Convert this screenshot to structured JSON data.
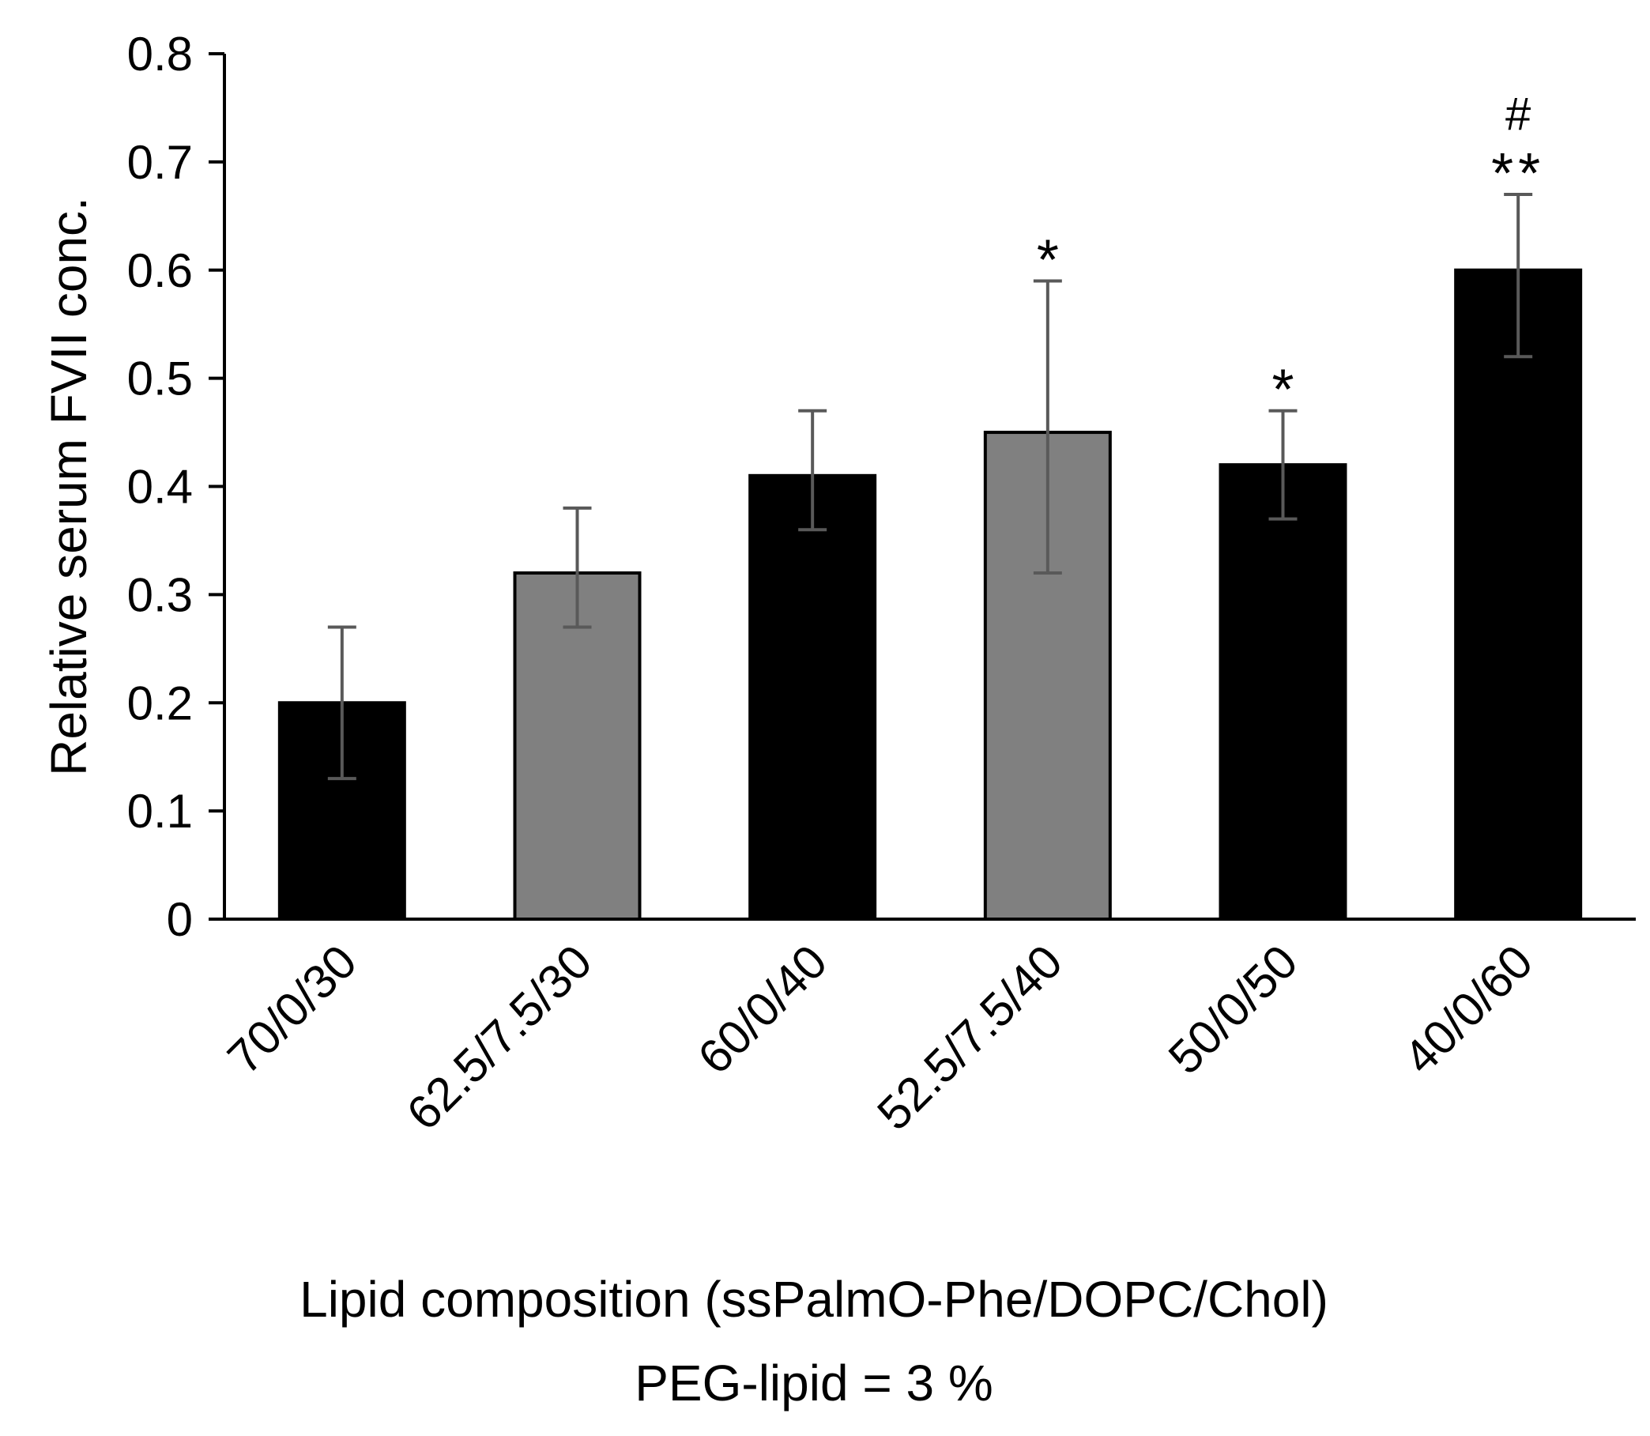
{
  "chart_data": {
    "type": "bar",
    "title": "",
    "ylabel": "Relative  serum FVII conc.",
    "xlabel_line1": "Lipid composition (ssPalmO-Phe/DOPC/Chol)",
    "xlabel_line2": "PEG-lipid = 3 %",
    "ylim": [
      0,
      0.8
    ],
    "yticks": [
      "0",
      "0.1",
      "0.2",
      "0.3",
      "0.4",
      "0.5",
      "0.6",
      "0.7",
      "0.8"
    ],
    "ytick_values": [
      0,
      0.1,
      0.2,
      0.3,
      0.4,
      0.5,
      0.6,
      0.7,
      0.8
    ],
    "grid": false,
    "categories": [
      "70/0/30",
      "62.5/7.5/30",
      "60/0/40",
      "52.5/7.5/40",
      "50/0/50",
      "40/0/60"
    ],
    "values": [
      0.2,
      0.32,
      0.41,
      0.45,
      0.42,
      0.6
    ],
    "error_low": [
      0.13,
      0.27,
      0.36,
      0.32,
      0.37,
      0.52
    ],
    "error_high": [
      0.27,
      0.38,
      0.47,
      0.59,
      0.47,
      0.67
    ],
    "bar_colors": [
      "#000000",
      "#808080",
      "#000000",
      "#808080",
      "#000000",
      "#000000"
    ],
    "significance": [
      "",
      "",
      "",
      "*",
      "*",
      "**"
    ],
    "significance_hash": [
      "",
      "",
      "",
      "",
      "",
      "#"
    ]
  }
}
